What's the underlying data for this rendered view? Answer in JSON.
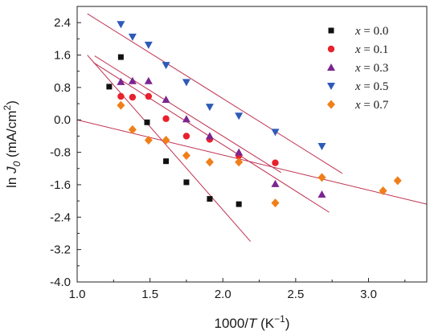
{
  "chart_data": {
    "type": "scatter",
    "xlabel": {
      "prefix": "1000/",
      "var": "T",
      "suffix": " (K",
      "sup": "−1",
      "close": ")"
    },
    "ylabel": {
      "prefix": "ln ",
      "var": "J",
      "sub": "0",
      "units": " (mA/cm",
      "sup": "2",
      "close": ")"
    },
    "xlim": [
      1.0,
      3.4
    ],
    "ylim": [
      -4.0,
      2.8
    ],
    "x_ticks": [
      1.0,
      1.5,
      2.0,
      2.5,
      3.0
    ],
    "x_tick_labels": [
      "1.0",
      "1.5",
      "2.0",
      "2.5",
      "3.0"
    ],
    "y_ticks": [
      2.4,
      1.6,
      0.8,
      0.0,
      -0.8,
      -1.6,
      -2.4,
      -3.2,
      -4.0
    ],
    "y_tick_labels": [
      "2.4",
      "1.6",
      "0.8",
      "0.0",
      "-0.8",
      "-1.6",
      "-2.4",
      "-3.2",
      "-4.0"
    ],
    "legend_position": "top-right",
    "fit_line_color": "#c03050",
    "series": [
      {
        "name": "x = 0.0",
        "name_var": "x",
        "name_rest": " = 0.0",
        "marker": "square",
        "color": "#111111",
        "points": [
          [
            1.22,
            0.82
          ],
          [
            1.3,
            1.55
          ],
          [
            1.48,
            -0.06
          ],
          [
            1.61,
            -1.02
          ],
          [
            1.75,
            -1.54
          ],
          [
            1.91,
            -1.95
          ],
          [
            2.11,
            -2.08
          ]
        ],
        "fit": [
          [
            1.07,
            1.6
          ],
          [
            2.19,
            -3.0
          ]
        ]
      },
      {
        "name": "x = 0.1",
        "name_var": "x",
        "name_rest": " = 0.1",
        "marker": "circle",
        "color": "#e8212c",
        "points": [
          [
            1.3,
            0.58
          ],
          [
            1.38,
            0.56
          ],
          [
            1.49,
            0.58
          ],
          [
            1.61,
            0.03
          ],
          [
            1.75,
            -0.4
          ],
          [
            1.91,
            -0.48
          ],
          [
            2.11,
            -0.88
          ],
          [
            2.36,
            -1.06
          ]
        ],
        "fit": [
          [
            1.12,
            1.58
          ],
          [
            2.4,
            -1.3
          ]
        ]
      },
      {
        "name": "x = 0.3",
        "name_var": "x",
        "name_rest": " = 0.3",
        "marker": "triangle-up",
        "color": "#7b2590",
        "points": [
          [
            1.3,
            0.94
          ],
          [
            1.38,
            0.96
          ],
          [
            1.49,
            0.96
          ],
          [
            1.61,
            0.5
          ],
          [
            1.75,
            0.02
          ],
          [
            1.91,
            -0.4
          ],
          [
            2.11,
            -0.8
          ],
          [
            2.36,
            -1.58
          ],
          [
            2.68,
            -1.84
          ]
        ],
        "fit": [
          [
            1.11,
            1.42
          ],
          [
            2.73,
            -2.28
          ]
        ]
      },
      {
        "name": "x = 0.5",
        "name_var": "x",
        "name_rest": " = 0.5",
        "marker": "triangle-down",
        "color": "#2e5ab8",
        "points": [
          [
            1.3,
            2.36
          ],
          [
            1.38,
            2.05
          ],
          [
            1.49,
            1.85
          ],
          [
            1.61,
            1.35
          ],
          [
            1.75,
            0.93
          ],
          [
            1.91,
            0.32
          ],
          [
            2.11,
            0.1
          ],
          [
            2.36,
            -0.3
          ],
          [
            2.68,
            -0.65
          ]
        ],
        "fit": [
          [
            1.07,
            2.62
          ],
          [
            2.82,
            -1.32
          ]
        ]
      },
      {
        "name": "x = 0.7",
        "name_var": "x",
        "name_rest": " = 0.7",
        "marker": "diamond",
        "color": "#f07f1a",
        "points": [
          [
            1.3,
            0.36
          ],
          [
            1.38,
            -0.24
          ],
          [
            1.49,
            -0.5
          ],
          [
            1.61,
            -0.5
          ],
          [
            1.75,
            -0.88
          ],
          [
            1.91,
            -1.04
          ],
          [
            2.11,
            -1.04
          ],
          [
            2.36,
            -2.05
          ],
          [
            2.68,
            -1.42
          ],
          [
            3.1,
            -1.75
          ],
          [
            3.2,
            -1.5
          ]
        ],
        "fit": [
          [
            1.0,
            0.0
          ],
          [
            3.4,
            -2.08
          ]
        ]
      }
    ]
  }
}
